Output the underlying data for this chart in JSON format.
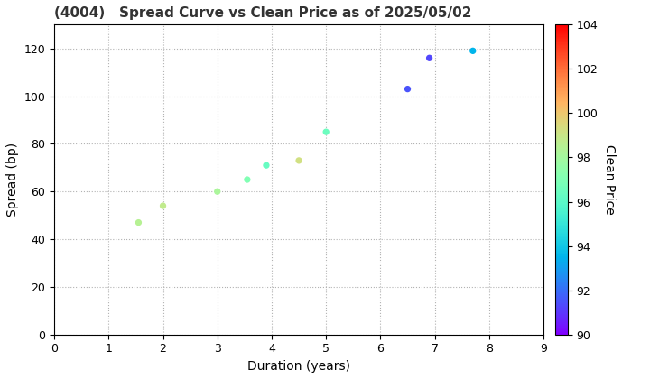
{
  "title": "(4004)   Spread Curve vs Clean Price as of 2025/05/02",
  "xlabel": "Duration (years)",
  "ylabel": "Spread (bp)",
  "colorbar_label": "Clean Price",
  "xlim": [
    0,
    9
  ],
  "ylim": [
    0,
    130
  ],
  "xticks": [
    0,
    1,
    2,
    3,
    4,
    5,
    6,
    7,
    8,
    9
  ],
  "yticks": [
    0,
    20,
    40,
    60,
    80,
    100,
    120
  ],
  "cmap": "rainbow",
  "vmin": 90,
  "vmax": 104,
  "colorbar_ticks": [
    90,
    92,
    94,
    96,
    98,
    100,
    102,
    104
  ],
  "points": [
    {
      "duration": 1.55,
      "spread": 47,
      "price": 98.5
    },
    {
      "duration": 2.0,
      "spread": 54,
      "price": 98.8
    },
    {
      "duration": 3.0,
      "spread": 60,
      "price": 98.2
    },
    {
      "duration": 3.55,
      "spread": 65,
      "price": 97.0
    },
    {
      "duration": 3.9,
      "spread": 71,
      "price": 96.3
    },
    {
      "duration": 4.5,
      "spread": 73,
      "price": 99.2
    },
    {
      "duration": 5.0,
      "spread": 85,
      "price": 96.5
    },
    {
      "duration": 6.5,
      "spread": 103,
      "price": 91.5
    },
    {
      "duration": 6.9,
      "spread": 116,
      "price": 91.3
    },
    {
      "duration": 7.7,
      "spread": 119,
      "price": 93.5
    }
  ],
  "marker_size": 18,
  "bg_color": "white",
  "grid_color": "#aaaaaa",
  "grid_style": ":",
  "grid_alpha": 0.9,
  "title_fontsize": 11,
  "axis_fontsize": 10,
  "tick_fontsize": 9
}
